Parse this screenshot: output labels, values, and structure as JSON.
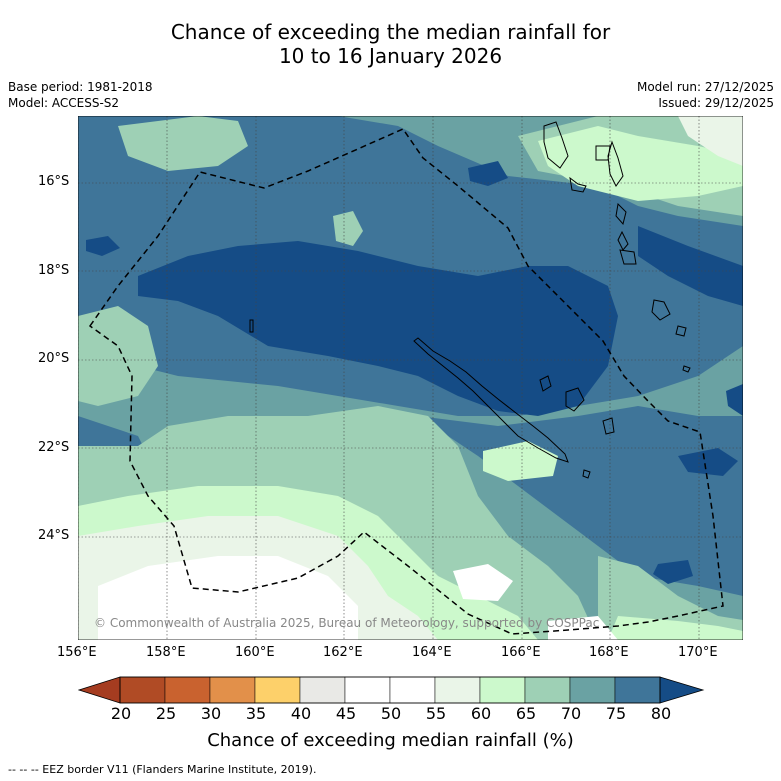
{
  "header": {
    "title_line1": "Chance of exceeding the median rainfall for",
    "title_line2": "10 to 16 January 2026",
    "base_period": "Base period: 1981-2018",
    "model": "Model: ACCESS-S2",
    "model_run": "Model run: 27/12/2025",
    "issued": "Issued: 29/12/2025"
  },
  "map": {
    "copyright": "© Commonwealth of Australia 2025, Bureau of Meteorology, supported by COSPPac",
    "lat_labels": [
      "16°S",
      "18°S",
      "20°S",
      "22°S",
      "24°S"
    ],
    "lon_labels": [
      "156°E",
      "158°E",
      "160°E",
      "162°E",
      "164°E",
      "166°E",
      "168°E",
      "170°E"
    ]
  },
  "colorbar": {
    "title": "Chance of exceeding median rainfall (%)",
    "ticks": [
      "20",
      "25",
      "30",
      "35",
      "40",
      "45",
      "50",
      "55",
      "60",
      "65",
      "70",
      "75",
      "80"
    ],
    "colors": [
      "#a53c20",
      "#b04b25",
      "#c9622f",
      "#e2904a",
      "#fdd06a",
      "#e9e9e6",
      "#ffffff",
      "#ffffff",
      "#eaf5e8",
      "#ccf9cc",
      "#9ed0b5",
      "#6aa2a3",
      "#3f7599",
      "#154c86"
    ]
  },
  "legend": {
    "eez": "--  --  -- EEZ border V11 (Flanders Marine Institute, 2019)."
  }
}
